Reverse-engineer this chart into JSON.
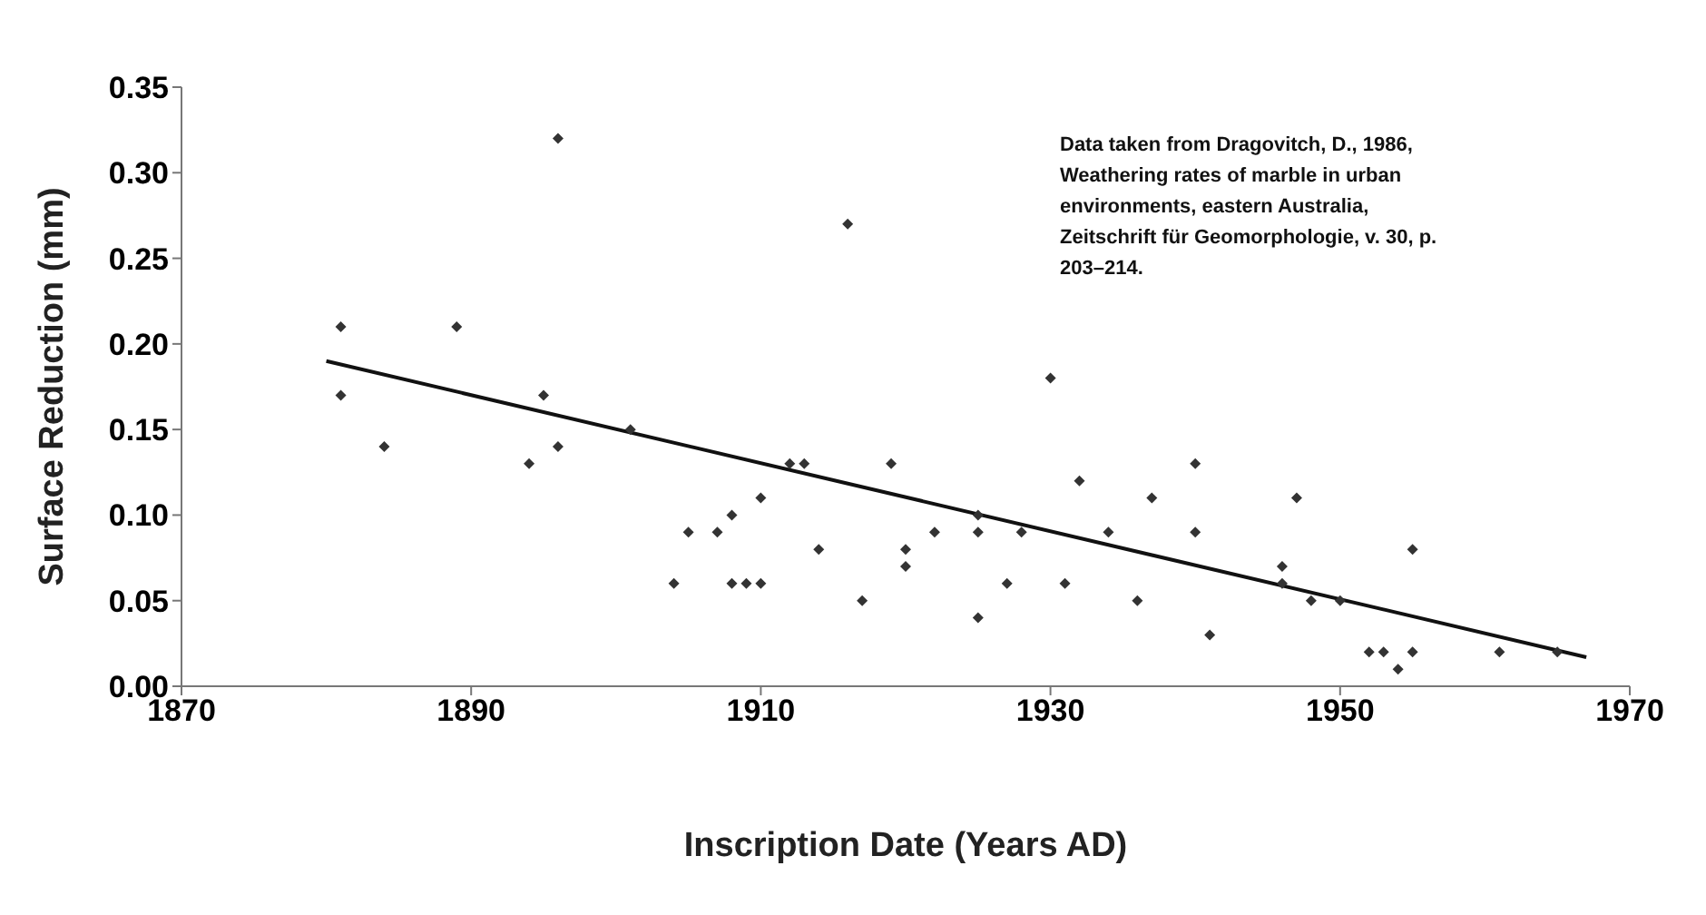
{
  "chart_data": {
    "type": "scatter",
    "xlabel": "Inscription Date (Years AD)",
    "ylabel": "Surface Reduction (mm)",
    "annotations": [
      "Data taken from Dragovitch, D., 1986, Weathering rates of marble in urban environments, eastern Australia, Zeitschrift für Geomorphologie, v. 30, p. 203–214."
    ],
    "xlim": [
      1870,
      1970
    ],
    "xticks": [
      1870,
      1890,
      1910,
      1930,
      1950,
      1970
    ],
    "ylim": [
      0,
      0.35
    ],
    "yticks": [
      {
        "value": 0,
        "label": "0.00"
      },
      {
        "value": 0.05,
        "label": "0.05"
      },
      {
        "value": 0.1,
        "label": "0.10"
      },
      {
        "value": 0.15,
        "label": "0.15"
      },
      {
        "value": 0.2,
        "label": "0.20"
      },
      {
        "value": 0.25,
        "label": "0.25"
      },
      {
        "value": 0.3,
        "label": "0.30"
      },
      {
        "value": 0.35,
        "label": "0.35"
      }
    ],
    "grid": false,
    "legend": false,
    "marker": "diamond",
    "series": [
      {
        "color": "#333333",
        "x": [
          1881,
          1881,
          1884,
          1889,
          1894,
          1895,
          1896,
          1896,
          1901,
          1904,
          1905,
          1907,
          1908,
          1908,
          1909,
          1910,
          1910,
          1912,
          1913,
          1914,
          1916,
          1917,
          1919,
          1920,
          1920,
          1922,
          1925,
          1925,
          1925,
          1927,
          1928,
          1930,
          1931,
          1932,
          1934,
          1936,
          1937,
          1940,
          1940,
          1941,
          1946,
          1946,
          1947,
          1948,
          1950,
          1952,
          1953,
          1954,
          1955,
          1955,
          1961,
          1965
        ],
        "values": [
          0.21,
          0.17,
          0.14,
          0.21,
          0.13,
          0.17,
          0.32,
          0.14,
          0.15,
          0.06,
          0.09,
          0.09,
          0.1,
          0.06,
          0.06,
          0.06,
          0.11,
          0.13,
          0.13,
          0.08,
          0.27,
          0.05,
          0.13,
          0.08,
          0.07,
          0.09,
          0.1,
          0.09,
          0.04,
          0.06,
          0.09,
          0.18,
          0.06,
          0.12,
          0.09,
          0.05,
          0.11,
          0.13,
          0.09,
          0.03,
          0.07,
          0.06,
          0.11,
          0.05,
          0.05,
          0.02,
          0.02,
          0.01,
          0.02,
          0.08,
          0.02,
          0.02
        ]
      },
      {
        "type": "line",
        "marker": "none",
        "color": "#111111",
        "x": [
          1880,
          1967
        ],
        "values": [
          0.19,
          0.017
        ]
      }
    ]
  }
}
